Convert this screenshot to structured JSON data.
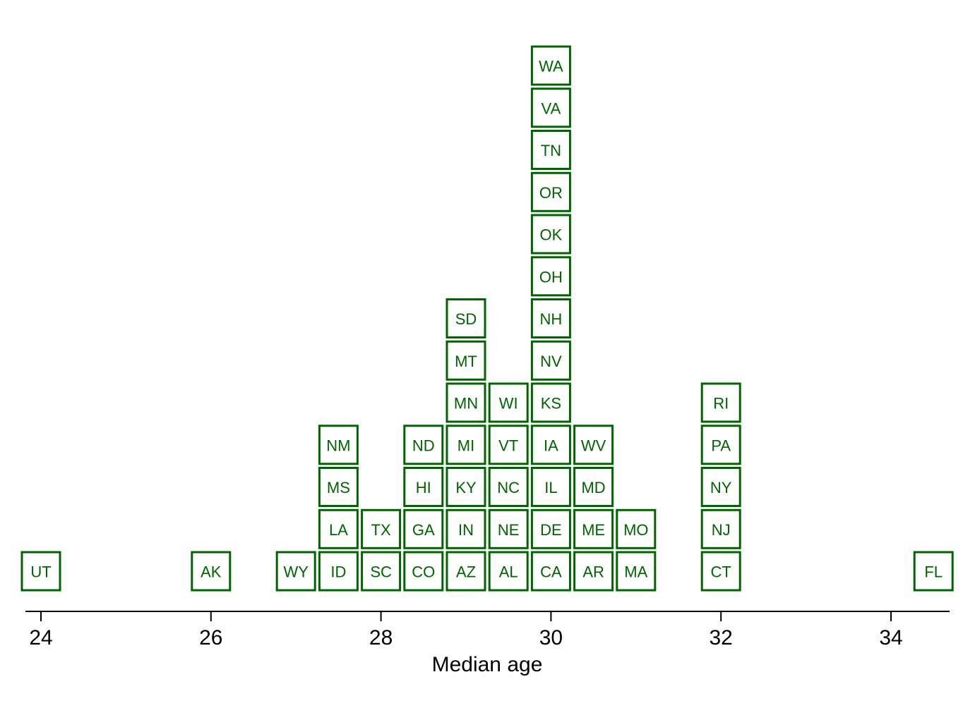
{
  "chart_data": {
    "type": "scatter",
    "title": "",
    "xlabel": "Median age",
    "ylabel": "",
    "xlim": [
      23.8,
      34.7
    ],
    "xticks": [
      24,
      26,
      28,
      30,
      32,
      34
    ],
    "grid": false,
    "marker_color": "#006400",
    "points": [
      {
        "label": "UT",
        "x": 24.0,
        "stack": 0
      },
      {
        "label": "AK",
        "x": 26.0,
        "stack": 0
      },
      {
        "label": "WY",
        "x": 27.0,
        "stack": 0
      },
      {
        "label": "ID",
        "x": 27.5,
        "stack": 0
      },
      {
        "label": "LA",
        "x": 27.5,
        "stack": 1
      },
      {
        "label": "MS",
        "x": 27.5,
        "stack": 2
      },
      {
        "label": "NM",
        "x": 27.5,
        "stack": 3
      },
      {
        "label": "SC",
        "x": 28.0,
        "stack": 0
      },
      {
        "label": "TX",
        "x": 28.0,
        "stack": 1
      },
      {
        "label": "CO",
        "x": 28.5,
        "stack": 0
      },
      {
        "label": "GA",
        "x": 28.5,
        "stack": 1
      },
      {
        "label": "HI",
        "x": 28.5,
        "stack": 2
      },
      {
        "label": "ND",
        "x": 28.5,
        "stack": 3
      },
      {
        "label": "AZ",
        "x": 29.0,
        "stack": 0
      },
      {
        "label": "IN",
        "x": 29.0,
        "stack": 1
      },
      {
        "label": "KY",
        "x": 29.0,
        "stack": 2
      },
      {
        "label": "MI",
        "x": 29.0,
        "stack": 3
      },
      {
        "label": "MN",
        "x": 29.0,
        "stack": 4
      },
      {
        "label": "MT",
        "x": 29.0,
        "stack": 5
      },
      {
        "label": "SD",
        "x": 29.0,
        "stack": 6
      },
      {
        "label": "AL",
        "x": 29.5,
        "stack": 0
      },
      {
        "label": "NE",
        "x": 29.5,
        "stack": 1
      },
      {
        "label": "NC",
        "x": 29.5,
        "stack": 2
      },
      {
        "label": "VT",
        "x": 29.5,
        "stack": 3
      },
      {
        "label": "WI",
        "x": 29.5,
        "stack": 4
      },
      {
        "label": "CA",
        "x": 30.0,
        "stack": 0
      },
      {
        "label": "DE",
        "x": 30.0,
        "stack": 1
      },
      {
        "label": "IL",
        "x": 30.0,
        "stack": 2
      },
      {
        "label": "IA",
        "x": 30.0,
        "stack": 3
      },
      {
        "label": "KS",
        "x": 30.0,
        "stack": 4
      },
      {
        "label": "NV",
        "x": 30.0,
        "stack": 5
      },
      {
        "label": "NH",
        "x": 30.0,
        "stack": 6
      },
      {
        "label": "OH",
        "x": 30.0,
        "stack": 7
      },
      {
        "label": "OK",
        "x": 30.0,
        "stack": 8
      },
      {
        "label": "OR",
        "x": 30.0,
        "stack": 9
      },
      {
        "label": "TN",
        "x": 30.0,
        "stack": 10
      },
      {
        "label": "VA",
        "x": 30.0,
        "stack": 11
      },
      {
        "label": "WA",
        "x": 30.0,
        "stack": 12
      },
      {
        "label": "AR",
        "x": 30.5,
        "stack": 0
      },
      {
        "label": "ME",
        "x": 30.5,
        "stack": 1
      },
      {
        "label": "MD",
        "x": 30.5,
        "stack": 2
      },
      {
        "label": "WV",
        "x": 30.5,
        "stack": 3
      },
      {
        "label": "MA",
        "x": 31.0,
        "stack": 0
      },
      {
        "label": "MO",
        "x": 31.0,
        "stack": 1
      },
      {
        "label": "CT",
        "x": 32.0,
        "stack": 0
      },
      {
        "label": "NJ",
        "x": 32.0,
        "stack": 1
      },
      {
        "label": "NY",
        "x": 32.0,
        "stack": 2
      },
      {
        "label": "PA",
        "x": 32.0,
        "stack": 3
      },
      {
        "label": "RI",
        "x": 32.0,
        "stack": 4
      },
      {
        "label": "FL",
        "x": 34.5,
        "stack": 0
      }
    ]
  }
}
